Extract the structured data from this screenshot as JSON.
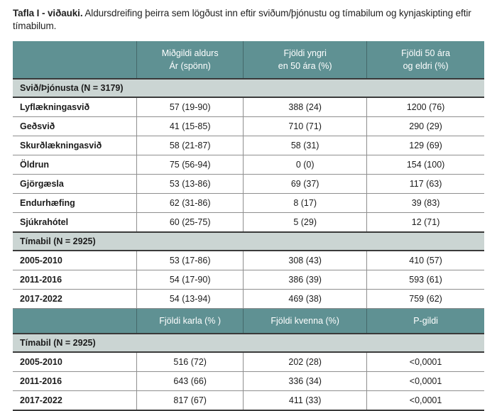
{
  "page": {
    "caption_bold": "Tafla I - viðauki.",
    "caption_rest": " Aldursdreifing þeirra sem lögðust inn eftir sviðum/þjónustu og tímabilum og kynjaskipting eftir tímabilum."
  },
  "colors": {
    "header_bg": "#5f9193",
    "section_bg": "#cbd5d3",
    "header_text": "#ffffff",
    "body_text": "#1c1c1c",
    "grid_line": "#8f8f8f",
    "heavy_line": "#3a3a3a"
  },
  "table": {
    "rows": [
      {
        "type": "header",
        "cells": [
          "",
          "Miðgildi aldurs\nÁr (spönn)",
          "Fjöldi yngri\nen 50 ára (%)",
          "Fjöldi 50 ára\nog eldri (%)"
        ]
      },
      {
        "type": "section",
        "label": "Svið/Þjónusta (N = 3179)"
      },
      {
        "type": "data",
        "cells": [
          "Lyflækningasvið",
          "57 (19-90)",
          "388 (24)",
          "1200 (76)"
        ]
      },
      {
        "type": "data",
        "cells": [
          "Geðsvið",
          "41 (15-85)",
          "710 (71)",
          "290 (29)"
        ]
      },
      {
        "type": "data",
        "cells": [
          "Skurðlækningasvið",
          "58 (21-87)",
          "58 (31)",
          "129 (69)"
        ]
      },
      {
        "type": "data",
        "cells": [
          "Öldrun",
          "75 (56-94)",
          "0 (0)",
          "154 (100)"
        ]
      },
      {
        "type": "data",
        "cells": [
          "Gjörgæsla",
          "53 (13-86)",
          "69 (37)",
          "117 (63)"
        ]
      },
      {
        "type": "data",
        "cells": [
          "Endurhæfing",
          "62 (31-86)",
          "8 (17)",
          "39 (83)"
        ]
      },
      {
        "type": "data",
        "cells": [
          "Sjúkrahótel",
          "60 (25-75)",
          "5 (29)",
          "12 (71)"
        ]
      },
      {
        "type": "section",
        "label": "Tímabil (N = 2925)"
      },
      {
        "type": "data",
        "cells": [
          "2005-2010",
          "53 (17-86)",
          "308 (43)",
          "410 (57)"
        ]
      },
      {
        "type": "data",
        "cells": [
          "2011-2016",
          "54 (17-90)",
          "386 (39)",
          "593 (61)"
        ]
      },
      {
        "type": "data",
        "cells": [
          "2017-2022",
          "54 (13-94)",
          "469 (38)",
          "759 (62)"
        ]
      },
      {
        "type": "header",
        "cells": [
          "",
          "Fjöldi karla (% )",
          "Fjöldi kvenna (%)",
          "P-gildi"
        ]
      },
      {
        "type": "section",
        "label": "Tímabil (N = 2925)"
      },
      {
        "type": "data",
        "cells": [
          "2005-2010",
          "516 (72)",
          "202 (28)",
          "<0,0001"
        ]
      },
      {
        "type": "data",
        "cells": [
          "2011-2016",
          "643 (66)",
          "336 (34)",
          "<0,0001"
        ]
      },
      {
        "type": "data",
        "cells": [
          "2017-2022",
          "817 (67)",
          "411 (33)",
          "<0,0001"
        ]
      }
    ]
  }
}
